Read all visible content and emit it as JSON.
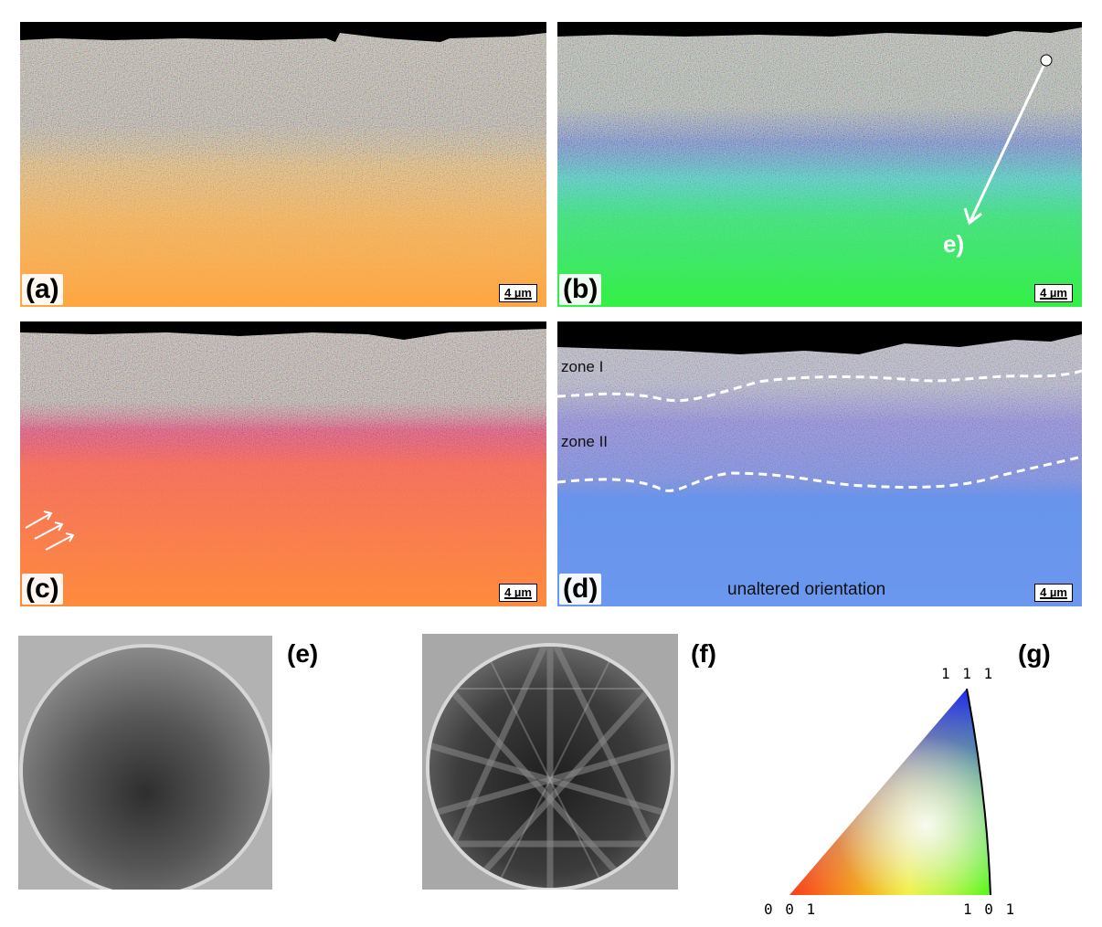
{
  "panels": {
    "a": {
      "label": "(a)",
      "scale": "4 µm"
    },
    "b": {
      "label": "(b)",
      "scale": "4 µm",
      "path_label": "e)"
    },
    "c": {
      "label": "(c)",
      "scale": "4 µm"
    },
    "d": {
      "label": "(d)",
      "scale": "4 µm",
      "zone1": "zone I",
      "zone2": "zone II",
      "caption": "unaltered orientation"
    },
    "e": {
      "label": "(e)"
    },
    "f": {
      "label": "(f)"
    },
    "g": {
      "label": "(g)",
      "vertex_top": "1 1 1",
      "vertex_left": "0 0 1",
      "vertex_right": "1 0 1"
    }
  },
  "colors": {
    "a_bulk": "#ffab45",
    "b_bulk": "#37ef48",
    "c_bulk": "#ff8a3e",
    "d_bulk": "#6a96ec",
    "surface": "#000000"
  }
}
